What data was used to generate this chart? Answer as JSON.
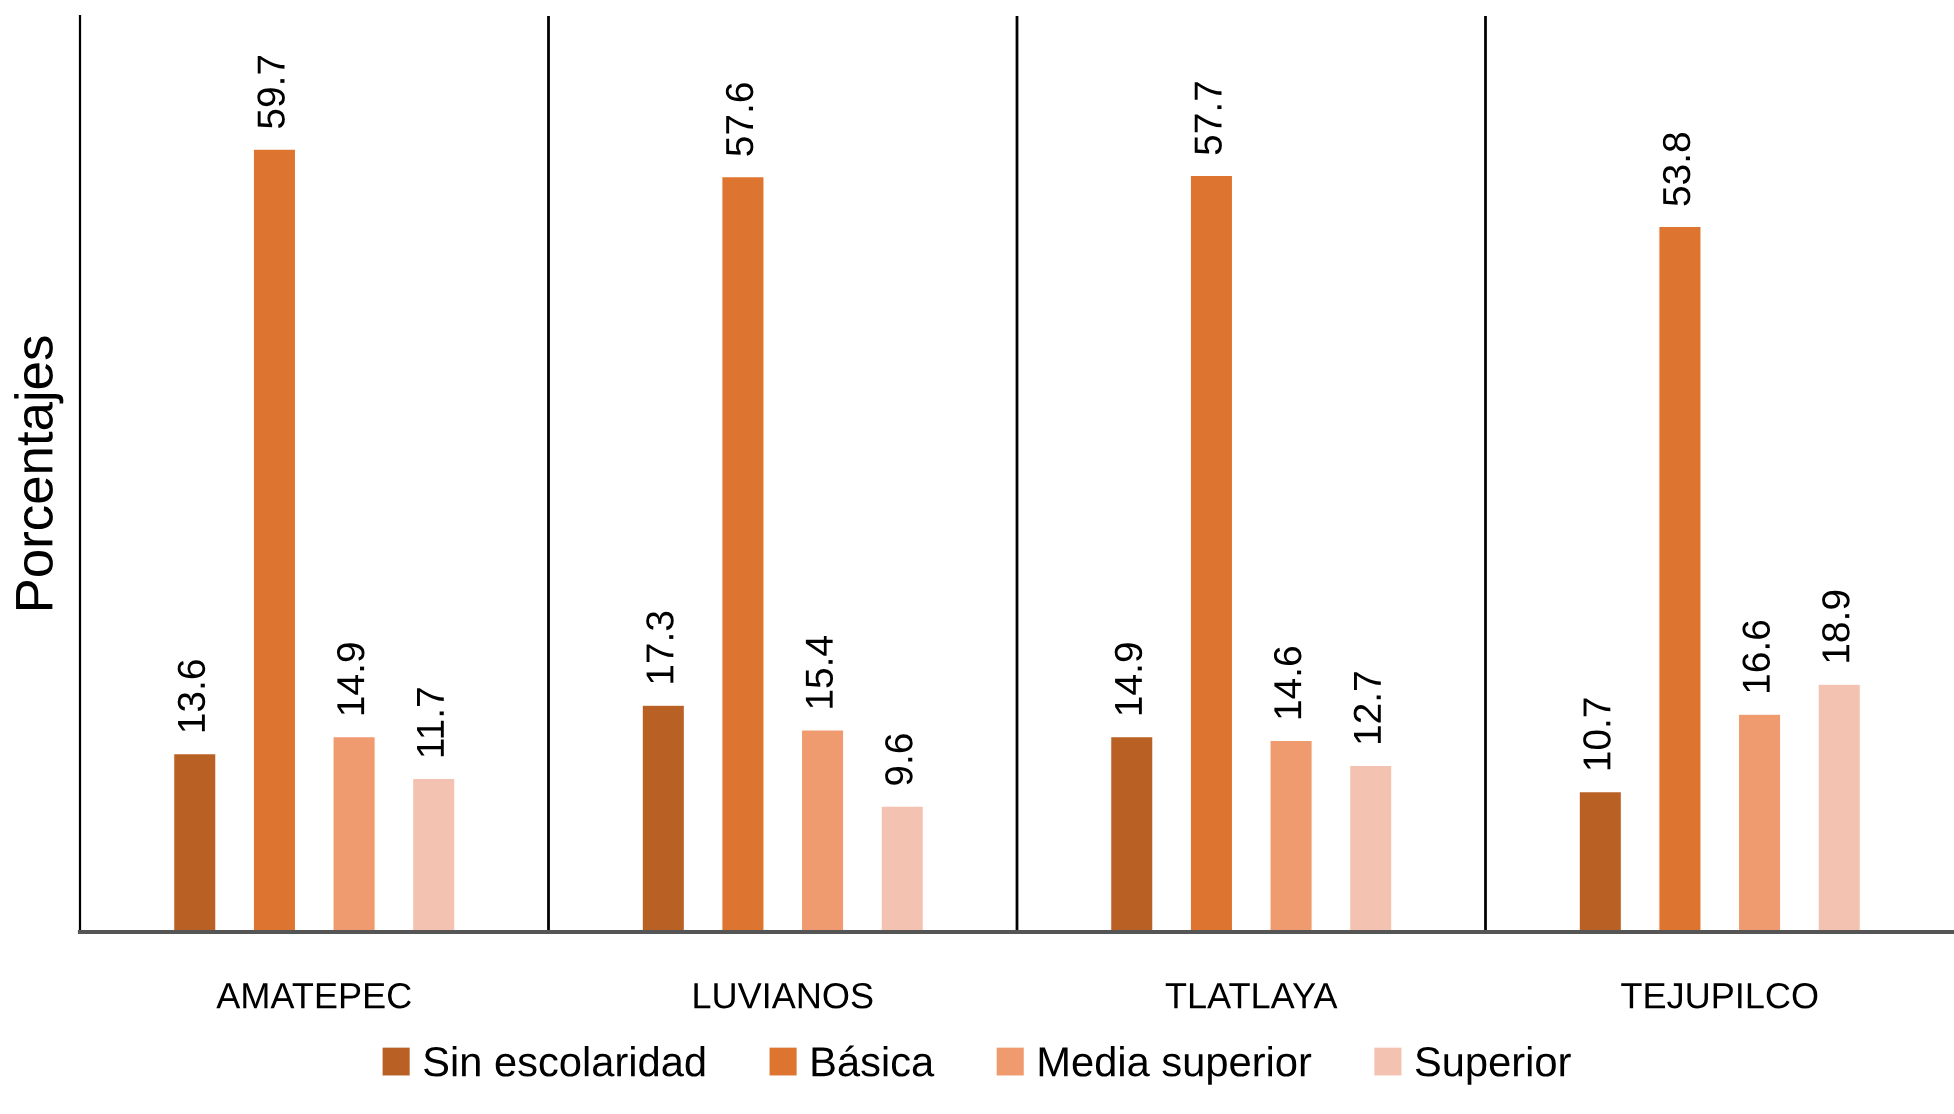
{
  "chart_data": {
    "type": "bar",
    "ylabel": "Porcentajes",
    "categories": [
      "AMATEPEC",
      "LUVIANOS",
      "TLATLAYA",
      "TEJUPILCO"
    ],
    "series": [
      {
        "name": "Sin escolaridad",
        "color": "#b96025",
        "values": [
          13.6,
          17.3,
          14.9,
          10.7
        ]
      },
      {
        "name": "Básica",
        "color": "#dd7530",
        "values": [
          59.7,
          57.6,
          57.7,
          53.8
        ]
      },
      {
        "name": "Media superior",
        "color": "#f09a70",
        "values": [
          14.9,
          15.4,
          14.6,
          16.6
        ]
      },
      {
        "name": "Superior",
        "color": "#f4c2b0",
        "values": [
          11.7,
          9.6,
          12.7,
          18.9
        ]
      }
    ],
    "data_labels": true,
    "grid": "x",
    "legend": "bottom",
    "tick_labels": "x"
  }
}
